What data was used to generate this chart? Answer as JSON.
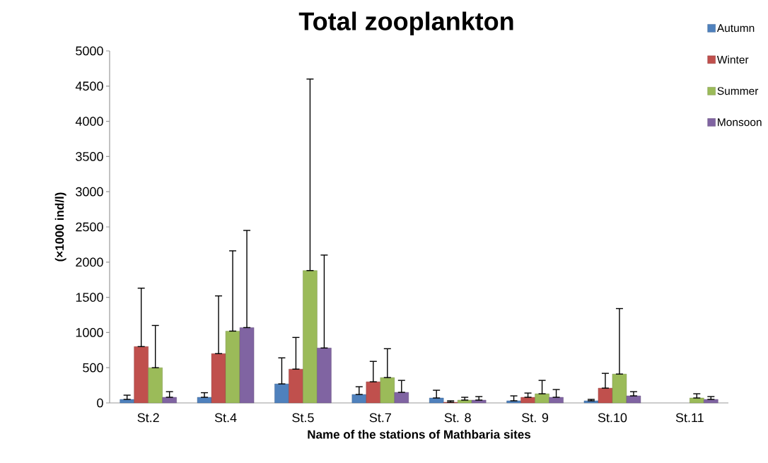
{
  "chart_data": {
    "type": "bar",
    "title": "Total zooplankton",
    "xlabel": "Name of the stations of Mathbaria sites",
    "ylabel": "(×1000 ind/l)",
    "categories": [
      "St.2",
      "St.4",
      "St.5",
      "St.7",
      "St. 8",
      "St. 9",
      "St.10",
      "St.11"
    ],
    "series": [
      {
        "name": "Autumn",
        "color": "#4f81bd",
        "values": [
          50,
          80,
          270,
          120,
          70,
          30,
          30,
          null
        ],
        "errors": [
          [
            50,
            110
          ],
          [
            80,
            145
          ],
          [
            270,
            640
          ],
          [
            120,
            230
          ],
          [
            70,
            180
          ],
          [
            30,
            100
          ],
          [
            30,
            50
          ],
          null
        ]
      },
      {
        "name": "Winter",
        "color": "#c0504d",
        "values": [
          800,
          700,
          480,
          300,
          10,
          80,
          210,
          null
        ],
        "errors": [
          [
            800,
            1630
          ],
          [
            700,
            1520
          ],
          [
            480,
            930
          ],
          [
            300,
            590
          ],
          [
            10,
            30
          ],
          [
            80,
            140
          ],
          [
            210,
            420
          ],
          null
        ]
      },
      {
        "name": "Summer",
        "color": "#9bbb59",
        "values": [
          500,
          1020,
          1880,
          360,
          40,
          130,
          410,
          70
        ],
        "errors": [
          [
            500,
            1100
          ],
          [
            1020,
            2160
          ],
          [
            1880,
            4600
          ],
          [
            360,
            770
          ],
          [
            40,
            80
          ],
          [
            130,
            320
          ],
          [
            410,
            1340
          ],
          [
            70,
            130
          ]
        ]
      },
      {
        "name": "Monsoon",
        "color": "#8064a2",
        "values": [
          80,
          1070,
          780,
          150,
          40,
          80,
          100,
          50
        ],
        "errors": [
          [
            80,
            160
          ],
          [
            1070,
            2450
          ],
          [
            780,
            2100
          ],
          [
            150,
            320
          ],
          [
            40,
            90
          ],
          [
            80,
            190
          ],
          [
            100,
            160
          ],
          [
            50,
            90
          ]
        ]
      }
    ],
    "ylim": [
      0,
      5000
    ],
    "yticks": [
      0,
      500,
      1000,
      1500,
      2000,
      2500,
      3000,
      3500,
      4000,
      4500,
      5000
    ],
    "legend": "top right"
  }
}
